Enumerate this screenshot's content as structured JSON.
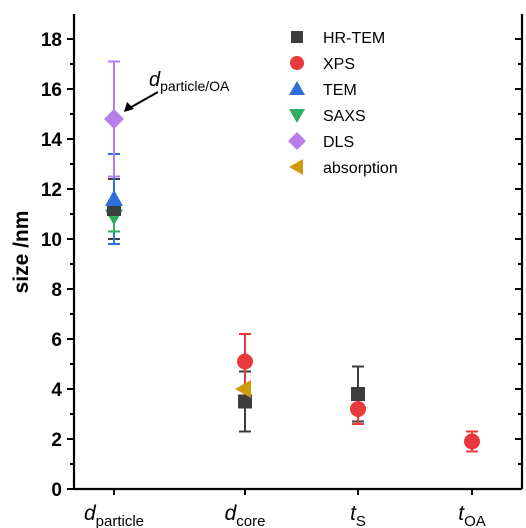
{
  "chart_data": {
    "type": "scatter",
    "ylabel": "size /nm",
    "xlabel": "",
    "ylim": [
      0,
      19
    ],
    "yticks": [
      0,
      2,
      4,
      6,
      8,
      10,
      12,
      14,
      16,
      18
    ],
    "categories": [
      {
        "main": "d",
        "sub": "particle"
      },
      {
        "main": "d",
        "sub": "core"
      },
      {
        "main": "t",
        "sub": "S"
      },
      {
        "main": "t",
        "sub": "OA"
      }
    ],
    "series": [
      {
        "name": "HR-TEM",
        "marker": "square",
        "color": "#3d3d3d",
        "points": [
          {
            "category": 0,
            "y": 11.2,
            "err_low": 10.0,
            "err_high": 12.4
          },
          {
            "category": 1,
            "y": 3.5,
            "err_low": 2.3,
            "err_high": 4.7
          },
          {
            "category": 2,
            "y": 3.8,
            "err_low": 2.7,
            "err_high": 4.9
          }
        ]
      },
      {
        "name": "XPS",
        "marker": "circle",
        "color": "#e8393c",
        "points": [
          {
            "category": 1,
            "y": 5.1,
            "err_low": 4.0,
            "err_high": 6.2
          },
          {
            "category": 2,
            "y": 3.2,
            "err_low": 2.6,
            "err_high": 3.8
          },
          {
            "category": 3,
            "y": 1.9,
            "err_low": 1.5,
            "err_high": 2.3
          }
        ]
      },
      {
        "name": "TEM",
        "marker": "triangle-up",
        "color": "#2f6fd8",
        "points": [
          {
            "category": 0,
            "y": 11.6,
            "err_low": 9.8,
            "err_high": 13.4
          }
        ]
      },
      {
        "name": "SAXS",
        "marker": "triangle-down",
        "color": "#2eae5e",
        "points": [
          {
            "category": 0,
            "y": 10.9,
            "err_low": 10.3,
            "err_high": 11.5
          }
        ]
      },
      {
        "name": "DLS",
        "marker": "diamond",
        "color": "#b77ee9",
        "points": [
          {
            "category": 0,
            "y": 14.8,
            "err_low": 12.5,
            "err_high": 17.1
          }
        ]
      },
      {
        "name": "absorption",
        "marker": "triangle-left",
        "color": "#cc9a0a",
        "points": [
          {
            "category": 1,
            "y": 4.0,
            "err_low": 4.0,
            "err_high": 4.0
          }
        ]
      }
    ],
    "annotation": {
      "main": "d",
      "sub": "particle/OA",
      "target_series": "DLS",
      "target_category": 0
    },
    "legend_position": "top-center",
    "grid": false
  }
}
